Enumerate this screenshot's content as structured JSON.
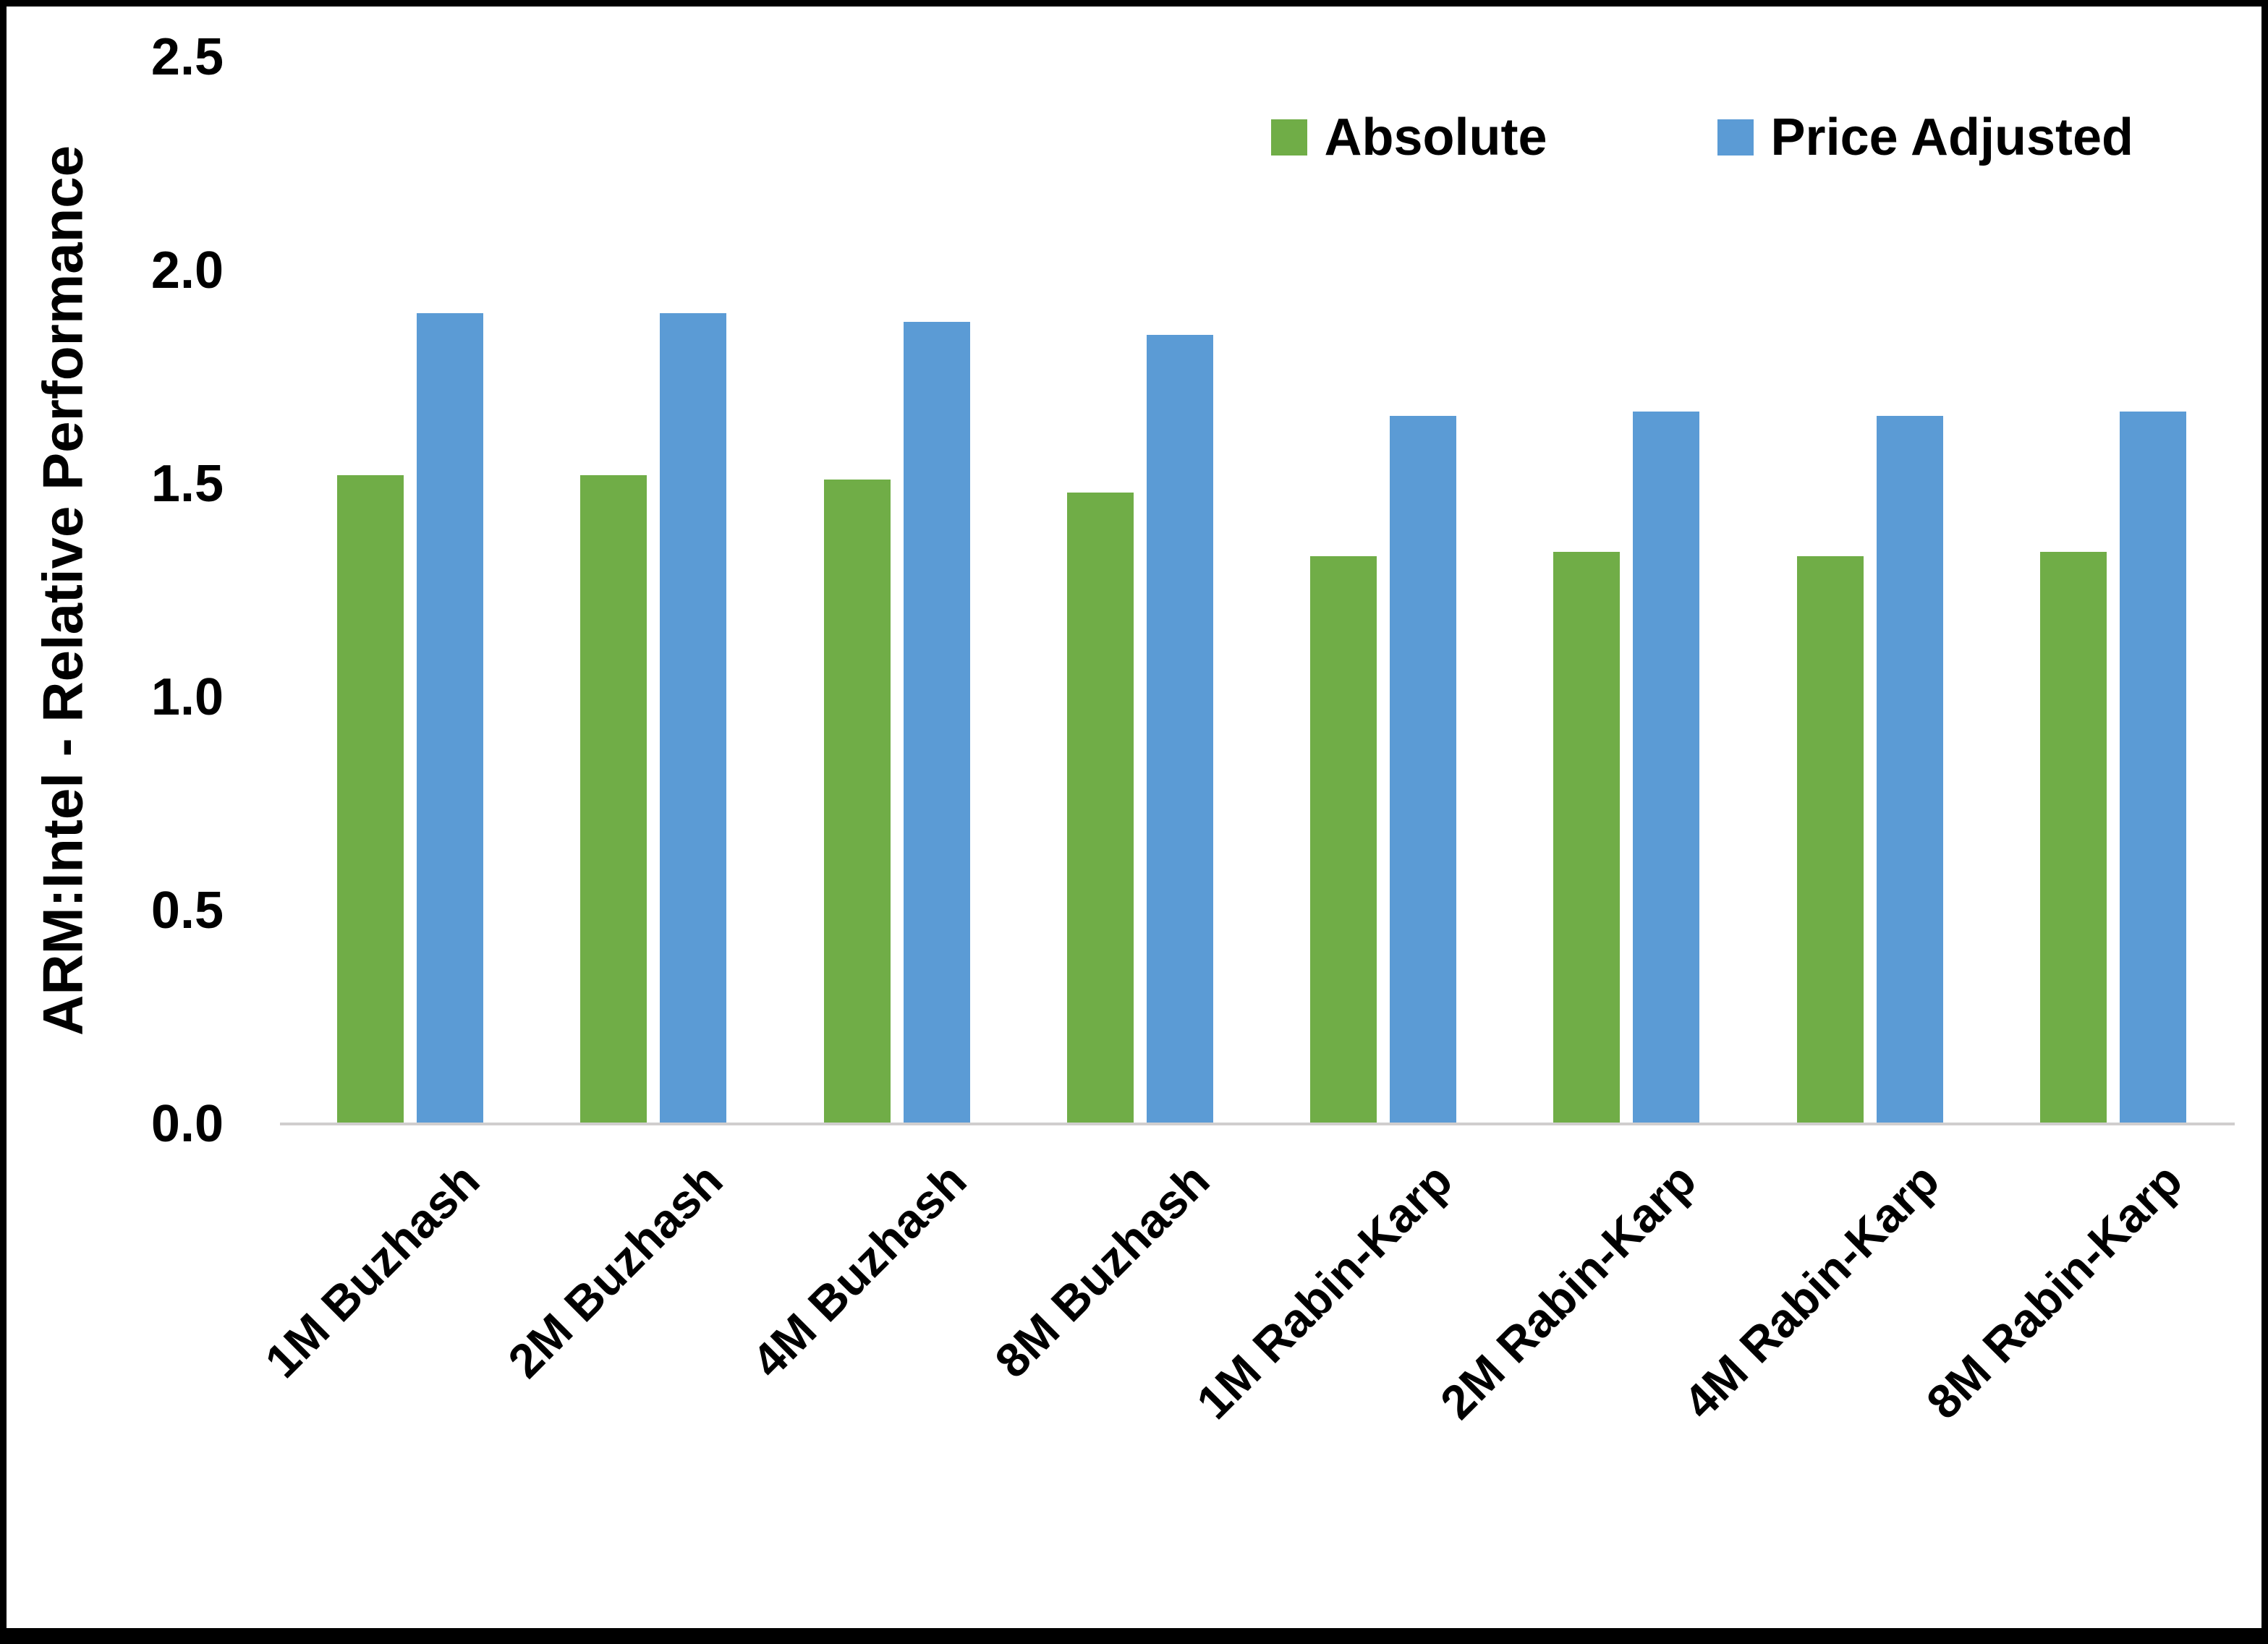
{
  "chart_data": {
    "type": "bar",
    "title": "",
    "xlabel": "",
    "ylabel": "ARM:Intel - Relative Performance",
    "ylim": [
      0,
      2.5
    ],
    "ytick_step": 0.5,
    "ytick_labels": [
      "0.0",
      "0.5",
      "1.0",
      "1.5",
      "2.0",
      "2.5"
    ],
    "grid": false,
    "legend_position": "top-right",
    "categories": [
      "1M Buzhash",
      "2M Buzhash",
      "4M Buzhash",
      "8M Buzhash",
      "1M Rabin-Karp",
      "2M Rabin-Karp",
      "4M Rabin-Karp",
      "8M Rabin-Karp"
    ],
    "series": [
      {
        "name": "Absolute",
        "color": "#70AD47",
        "values": [
          1.52,
          1.52,
          1.51,
          1.48,
          1.33,
          1.34,
          1.33,
          1.34
        ]
      },
      {
        "name": "Price Adjusted",
        "color": "#5B9BD5",
        "values": [
          1.9,
          1.9,
          1.88,
          1.85,
          1.66,
          1.67,
          1.66,
          1.67
        ]
      }
    ],
    "colors": {
      "axis_line": "#d0cece",
      "text": "#000000",
      "frame_border": "#000000"
    }
  }
}
